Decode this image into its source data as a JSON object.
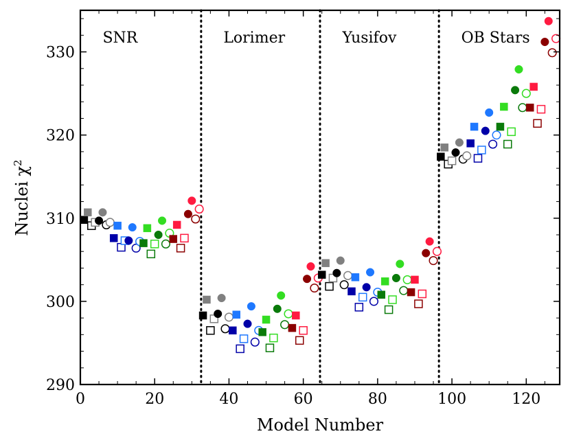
{
  "chart_data": {
    "type": "scatter",
    "title": "",
    "xlabel": "Model Number",
    "ylabel": "Nuclei χ",
    "ylabel_superscript": "2",
    "xlim": [
      0,
      129
    ],
    "ylim": [
      290,
      335
    ],
    "xticks": [
      0,
      20,
      40,
      60,
      80,
      100,
      120
    ],
    "yticks": [
      290,
      300,
      310,
      320,
      330
    ],
    "xtick_labels": [
      "0",
      "20",
      "40",
      "60",
      "80",
      "100",
      "120"
    ],
    "ytick_labels": [
      "290",
      "300",
      "310",
      "320",
      "330"
    ],
    "grid": false,
    "dividers": [
      32.5,
      64.5,
      96.5
    ],
    "regions": [
      {
        "label": "SNR",
        "x": 6
      },
      {
        "label": "Lorimer",
        "x": 38.5
      },
      {
        "label": "Yusifov",
        "x": 70.5
      },
      {
        "label": "OB Stars",
        "x": 102.5
      }
    ],
    "colors": {
      "black": "#000000",
      "gray": "#808080",
      "darkblue": "#0000a8",
      "blue": "#1e78ff",
      "green": "#33dd22",
      "darkgreen": "#0a7a0a",
      "crimson": "#ff1a40",
      "darkred": "#8b0000"
    },
    "points": [
      {
        "x": 1,
        "y": 309.8,
        "marker": "square",
        "fill": "filled",
        "color": "black"
      },
      {
        "x": 2,
        "y": 310.7,
        "marker": "square",
        "fill": "filled",
        "color": "gray"
      },
      {
        "x": 3,
        "y": 309.1,
        "marker": "square",
        "fill": "open",
        "color": "black"
      },
      {
        "x": 4,
        "y": 309.5,
        "marker": "square",
        "fill": "open",
        "color": "gray"
      },
      {
        "x": 5,
        "y": 309.7,
        "marker": "circle",
        "fill": "filled",
        "color": "black"
      },
      {
        "x": 6,
        "y": 310.7,
        "marker": "circle",
        "fill": "filled",
        "color": "gray"
      },
      {
        "x": 7,
        "y": 309.2,
        "marker": "circle",
        "fill": "open",
        "color": "black"
      },
      {
        "x": 8,
        "y": 309.5,
        "marker": "circle",
        "fill": "open",
        "color": "gray"
      },
      {
        "x": 9,
        "y": 307.6,
        "marker": "square",
        "fill": "filled",
        "color": "darkblue"
      },
      {
        "x": 10,
        "y": 309.1,
        "marker": "square",
        "fill": "filled",
        "color": "blue"
      },
      {
        "x": 11,
        "y": 306.5,
        "marker": "square",
        "fill": "open",
        "color": "darkblue"
      },
      {
        "x": 12,
        "y": 307.3,
        "marker": "square",
        "fill": "open",
        "color": "blue"
      },
      {
        "x": 13,
        "y": 307.3,
        "marker": "circle",
        "fill": "filled",
        "color": "darkblue"
      },
      {
        "x": 14,
        "y": 308.9,
        "marker": "circle",
        "fill": "filled",
        "color": "blue"
      },
      {
        "x": 15,
        "y": 306.4,
        "marker": "circle",
        "fill": "open",
        "color": "darkblue"
      },
      {
        "x": 16,
        "y": 307.2,
        "marker": "circle",
        "fill": "open",
        "color": "blue"
      },
      {
        "x": 17,
        "y": 307.0,
        "marker": "square",
        "fill": "filled",
        "color": "darkgreen"
      },
      {
        "x": 18,
        "y": 308.8,
        "marker": "square",
        "fill": "filled",
        "color": "green"
      },
      {
        "x": 19,
        "y": 305.7,
        "marker": "square",
        "fill": "open",
        "color": "darkgreen"
      },
      {
        "x": 20,
        "y": 306.9,
        "marker": "square",
        "fill": "open",
        "color": "green"
      },
      {
        "x": 21,
        "y": 308.0,
        "marker": "circle",
        "fill": "filled",
        "color": "darkgreen"
      },
      {
        "x": 22,
        "y": 309.7,
        "marker": "circle",
        "fill": "filled",
        "color": "green"
      },
      {
        "x": 23,
        "y": 306.9,
        "marker": "circle",
        "fill": "open",
        "color": "darkgreen"
      },
      {
        "x": 24,
        "y": 308.2,
        "marker": "circle",
        "fill": "open",
        "color": "green"
      },
      {
        "x": 25,
        "y": 307.5,
        "marker": "square",
        "fill": "filled",
        "color": "darkred"
      },
      {
        "x": 26,
        "y": 309.2,
        "marker": "square",
        "fill": "filled",
        "color": "crimson"
      },
      {
        "x": 27,
        "y": 306.4,
        "marker": "square",
        "fill": "open",
        "color": "darkred"
      },
      {
        "x": 28,
        "y": 307.6,
        "marker": "square",
        "fill": "open",
        "color": "crimson"
      },
      {
        "x": 29,
        "y": 310.5,
        "marker": "circle",
        "fill": "filled",
        "color": "darkred"
      },
      {
        "x": 30,
        "y": 312.1,
        "marker": "circle",
        "fill": "filled",
        "color": "crimson"
      },
      {
        "x": 31,
        "y": 309.9,
        "marker": "circle",
        "fill": "open",
        "color": "darkred"
      },
      {
        "x": 32,
        "y": 311.1,
        "marker": "circle",
        "fill": "open",
        "color": "crimson"
      },
      {
        "x": 33,
        "y": 298.3,
        "marker": "square",
        "fill": "filled",
        "color": "black"
      },
      {
        "x": 34,
        "y": 300.2,
        "marker": "square",
        "fill": "filled",
        "color": "gray"
      },
      {
        "x": 35,
        "y": 296.5,
        "marker": "square",
        "fill": "open",
        "color": "black"
      },
      {
        "x": 36,
        "y": 297.9,
        "marker": "square",
        "fill": "open",
        "color": "gray"
      },
      {
        "x": 37,
        "y": 298.5,
        "marker": "circle",
        "fill": "filled",
        "color": "black"
      },
      {
        "x": 38,
        "y": 300.4,
        "marker": "circle",
        "fill": "filled",
        "color": "gray"
      },
      {
        "x": 39,
        "y": 296.7,
        "marker": "circle",
        "fill": "open",
        "color": "black"
      },
      {
        "x": 40,
        "y": 298.1,
        "marker": "circle",
        "fill": "open",
        "color": "gray"
      },
      {
        "x": 41,
        "y": 296.5,
        "marker": "square",
        "fill": "filled",
        "color": "darkblue"
      },
      {
        "x": 42,
        "y": 298.4,
        "marker": "square",
        "fill": "filled",
        "color": "blue"
      },
      {
        "x": 43,
        "y": 294.3,
        "marker": "square",
        "fill": "open",
        "color": "darkblue"
      },
      {
        "x": 44,
        "y": 295.5,
        "marker": "square",
        "fill": "open",
        "color": "blue"
      },
      {
        "x": 45,
        "y": 297.3,
        "marker": "circle",
        "fill": "filled",
        "color": "darkblue"
      },
      {
        "x": 46,
        "y": 299.4,
        "marker": "circle",
        "fill": "filled",
        "color": "blue"
      },
      {
        "x": 47,
        "y": 295.1,
        "marker": "circle",
        "fill": "open",
        "color": "darkblue"
      },
      {
        "x": 48,
        "y": 296.5,
        "marker": "circle",
        "fill": "open",
        "color": "blue"
      },
      {
        "x": 49,
        "y": 296.3,
        "marker": "square",
        "fill": "filled",
        "color": "darkgreen"
      },
      {
        "x": 50,
        "y": 297.8,
        "marker": "square",
        "fill": "filled",
        "color": "green"
      },
      {
        "x": 51,
        "y": 294.4,
        "marker": "square",
        "fill": "open",
        "color": "darkgreen"
      },
      {
        "x": 52,
        "y": 295.6,
        "marker": "square",
        "fill": "open",
        "color": "green"
      },
      {
        "x": 53,
        "y": 299.1,
        "marker": "circle",
        "fill": "filled",
        "color": "darkgreen"
      },
      {
        "x": 54,
        "y": 300.7,
        "marker": "circle",
        "fill": "filled",
        "color": "green"
      },
      {
        "x": 55,
        "y": 297.2,
        "marker": "circle",
        "fill": "open",
        "color": "darkgreen"
      },
      {
        "x": 56,
        "y": 298.5,
        "marker": "circle",
        "fill": "open",
        "color": "green"
      },
      {
        "x": 57,
        "y": 296.8,
        "marker": "square",
        "fill": "filled",
        "color": "darkred"
      },
      {
        "x": 58,
        "y": 298.3,
        "marker": "square",
        "fill": "filled",
        "color": "crimson"
      },
      {
        "x": 59,
        "y": 295.3,
        "marker": "square",
        "fill": "open",
        "color": "darkred"
      },
      {
        "x": 60,
        "y": 296.5,
        "marker": "square",
        "fill": "open",
        "color": "crimson"
      },
      {
        "x": 61,
        "y": 302.7,
        "marker": "circle",
        "fill": "filled",
        "color": "darkred"
      },
      {
        "x": 62,
        "y": 304.2,
        "marker": "circle",
        "fill": "filled",
        "color": "crimson"
      },
      {
        "x": 63,
        "y": 301.6,
        "marker": "circle",
        "fill": "open",
        "color": "darkred"
      },
      {
        "x": 64,
        "y": 302.8,
        "marker": "circle",
        "fill": "open",
        "color": "crimson"
      },
      {
        "x": 65,
        "y": 303.2,
        "marker": "square",
        "fill": "filled",
        "color": "black"
      },
      {
        "x": 66,
        "y": 304.6,
        "marker": "square",
        "fill": "filled",
        "color": "gray"
      },
      {
        "x": 67,
        "y": 301.8,
        "marker": "square",
        "fill": "open",
        "color": "black"
      },
      {
        "x": 68,
        "y": 302.8,
        "marker": "square",
        "fill": "open",
        "color": "gray"
      },
      {
        "x": 69,
        "y": 303.4,
        "marker": "circle",
        "fill": "filled",
        "color": "black"
      },
      {
        "x": 70,
        "y": 304.9,
        "marker": "circle",
        "fill": "filled",
        "color": "gray"
      },
      {
        "x": 71,
        "y": 302.0,
        "marker": "circle",
        "fill": "open",
        "color": "black"
      },
      {
        "x": 72,
        "y": 303.1,
        "marker": "circle",
        "fill": "open",
        "color": "gray"
      },
      {
        "x": 73,
        "y": 301.2,
        "marker": "square",
        "fill": "filled",
        "color": "darkblue"
      },
      {
        "x": 74,
        "y": 302.9,
        "marker": "square",
        "fill": "filled",
        "color": "blue"
      },
      {
        "x": 75,
        "y": 299.3,
        "marker": "square",
        "fill": "open",
        "color": "darkblue"
      },
      {
        "x": 76,
        "y": 300.5,
        "marker": "square",
        "fill": "open",
        "color": "blue"
      },
      {
        "x": 77,
        "y": 301.7,
        "marker": "circle",
        "fill": "filled",
        "color": "darkblue"
      },
      {
        "x": 78,
        "y": 303.5,
        "marker": "circle",
        "fill": "filled",
        "color": "blue"
      },
      {
        "x": 79,
        "y": 300.0,
        "marker": "circle",
        "fill": "open",
        "color": "darkblue"
      },
      {
        "x": 80,
        "y": 301.1,
        "marker": "circle",
        "fill": "open",
        "color": "blue"
      },
      {
        "x": 81,
        "y": 300.8,
        "marker": "square",
        "fill": "filled",
        "color": "darkgreen"
      },
      {
        "x": 82,
        "y": 302.4,
        "marker": "square",
        "fill": "filled",
        "color": "green"
      },
      {
        "x": 83,
        "y": 299.0,
        "marker": "square",
        "fill": "open",
        "color": "darkgreen"
      },
      {
        "x": 84,
        "y": 300.2,
        "marker": "square",
        "fill": "open",
        "color": "green"
      },
      {
        "x": 85,
        "y": 302.8,
        "marker": "circle",
        "fill": "filled",
        "color": "darkgreen"
      },
      {
        "x": 86,
        "y": 304.5,
        "marker": "circle",
        "fill": "filled",
        "color": "green"
      },
      {
        "x": 87,
        "y": 301.3,
        "marker": "circle",
        "fill": "open",
        "color": "darkgreen"
      },
      {
        "x": 88,
        "y": 302.6,
        "marker": "circle",
        "fill": "open",
        "color": "green"
      },
      {
        "x": 89,
        "y": 301.1,
        "marker": "square",
        "fill": "filled",
        "color": "darkred"
      },
      {
        "x": 90,
        "y": 302.6,
        "marker": "square",
        "fill": "filled",
        "color": "crimson"
      },
      {
        "x": 91,
        "y": 299.7,
        "marker": "square",
        "fill": "open",
        "color": "darkred"
      },
      {
        "x": 92,
        "y": 300.9,
        "marker": "square",
        "fill": "open",
        "color": "crimson"
      },
      {
        "x": 93,
        "y": 305.8,
        "marker": "circle",
        "fill": "filled",
        "color": "darkred"
      },
      {
        "x": 94,
        "y": 307.2,
        "marker": "circle",
        "fill": "filled",
        "color": "crimson"
      },
      {
        "x": 95,
        "y": 304.9,
        "marker": "circle",
        "fill": "open",
        "color": "darkred"
      },
      {
        "x": 96,
        "y": 306.0,
        "marker": "circle",
        "fill": "open",
        "color": "crimson"
      },
      {
        "x": 97,
        "y": 317.4,
        "marker": "square",
        "fill": "filled",
        "color": "black"
      },
      {
        "x": 98,
        "y": 318.5,
        "marker": "square",
        "fill": "filled",
        "color": "gray"
      },
      {
        "x": 99,
        "y": 316.5,
        "marker": "square",
        "fill": "open",
        "color": "black"
      },
      {
        "x": 100,
        "y": 316.9,
        "marker": "square",
        "fill": "open",
        "color": "gray"
      },
      {
        "x": 101,
        "y": 317.9,
        "marker": "circle",
        "fill": "filled",
        "color": "black"
      },
      {
        "x": 102,
        "y": 319.1,
        "marker": "circle",
        "fill": "filled",
        "color": "gray"
      },
      {
        "x": 103,
        "y": 317.1,
        "marker": "circle",
        "fill": "open",
        "color": "black"
      },
      {
        "x": 104,
        "y": 317.5,
        "marker": "circle",
        "fill": "open",
        "color": "gray"
      },
      {
        "x": 105,
        "y": 319.0,
        "marker": "square",
        "fill": "filled",
        "color": "darkblue"
      },
      {
        "x": 106,
        "y": 321.0,
        "marker": "square",
        "fill": "filled",
        "color": "blue"
      },
      {
        "x": 107,
        "y": 317.2,
        "marker": "square",
        "fill": "open",
        "color": "darkblue"
      },
      {
        "x": 108,
        "y": 318.2,
        "marker": "square",
        "fill": "open",
        "color": "blue"
      },
      {
        "x": 109,
        "y": 320.5,
        "marker": "circle",
        "fill": "filled",
        "color": "darkblue"
      },
      {
        "x": 110,
        "y": 322.7,
        "marker": "circle",
        "fill": "filled",
        "color": "blue"
      },
      {
        "x": 111,
        "y": 318.9,
        "marker": "circle",
        "fill": "open",
        "color": "darkblue"
      },
      {
        "x": 112,
        "y": 320.0,
        "marker": "circle",
        "fill": "open",
        "color": "blue"
      },
      {
        "x": 113,
        "y": 321.0,
        "marker": "square",
        "fill": "filled",
        "color": "darkgreen"
      },
      {
        "x": 114,
        "y": 323.4,
        "marker": "square",
        "fill": "filled",
        "color": "green"
      },
      {
        "x": 115,
        "y": 318.9,
        "marker": "square",
        "fill": "open",
        "color": "darkgreen"
      },
      {
        "x": 116,
        "y": 320.4,
        "marker": "square",
        "fill": "open",
        "color": "green"
      },
      {
        "x": 117,
        "y": 325.4,
        "marker": "circle",
        "fill": "filled",
        "color": "darkgreen"
      },
      {
        "x": 118,
        "y": 327.9,
        "marker": "circle",
        "fill": "filled",
        "color": "green"
      },
      {
        "x": 119,
        "y": 323.3,
        "marker": "circle",
        "fill": "open",
        "color": "darkgreen"
      },
      {
        "x": 120,
        "y": 325.0,
        "marker": "circle",
        "fill": "open",
        "color": "green"
      },
      {
        "x": 121,
        "y": 323.3,
        "marker": "square",
        "fill": "filled",
        "color": "darkred"
      },
      {
        "x": 122,
        "y": 325.8,
        "marker": "square",
        "fill": "filled",
        "color": "crimson"
      },
      {
        "x": 123,
        "y": 321.4,
        "marker": "square",
        "fill": "open",
        "color": "darkred"
      },
      {
        "x": 124,
        "y": 323.1,
        "marker": "square",
        "fill": "open",
        "color": "crimson"
      },
      {
        "x": 125,
        "y": 331.2,
        "marker": "circle",
        "fill": "filled",
        "color": "darkred"
      },
      {
        "x": 126,
        "y": 333.7,
        "marker": "circle",
        "fill": "filled",
        "color": "crimson"
      },
      {
        "x": 127,
        "y": 329.9,
        "marker": "circle",
        "fill": "open",
        "color": "darkred"
      },
      {
        "x": 128,
        "y": 331.6,
        "marker": "circle",
        "fill": "open",
        "color": "crimson"
      }
    ]
  }
}
